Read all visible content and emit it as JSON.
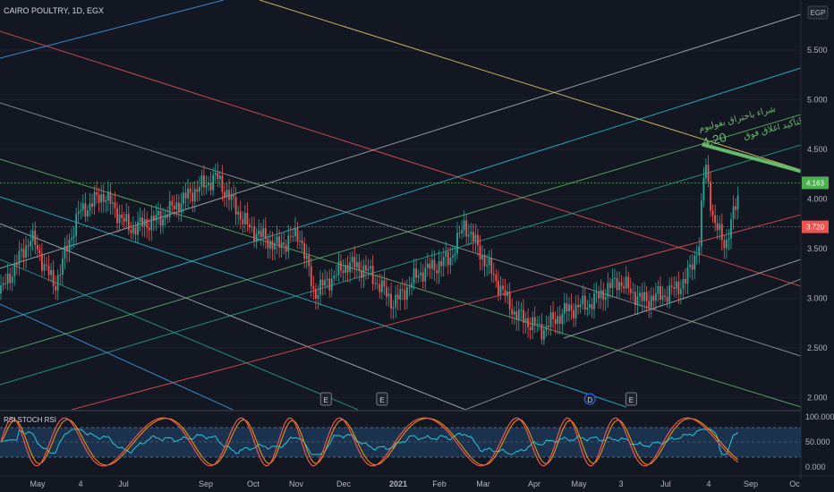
{
  "header": {
    "symbol_title": "CAIRO POULTRY, 1D, EGX",
    "currency_button": "EGP"
  },
  "price_badges": {
    "upper": {
      "value": "4.163",
      "color": "#4caf50"
    },
    "lower": {
      "value": "3.720",
      "color": "#ef5350"
    }
  },
  "annotation": {
    "line1": "شراء باختراق بفوليوم",
    "line2": "4.20",
    "line3": "للتأكيد اغلاق فوق",
    "color": "#66bb6a"
  },
  "events": [
    {
      "label": "E",
      "date": "2020-11-20",
      "kind": "earnings"
    },
    {
      "label": "E",
      "date": "2020-12-28",
      "kind": "earnings"
    },
    {
      "label": "D",
      "date": "2021-05-18",
      "kind": "dividend"
    },
    {
      "label": "E",
      "date": "2021-06-15",
      "kind": "earnings"
    }
  ],
  "indicator": {
    "title": "RSI STOCH RSI",
    "scale_labels": [
      "100.000",
      "50.000",
      "0.000"
    ],
    "levels": [
      80,
      50,
      20
    ]
  },
  "x_labels": [
    "May",
    "4",
    "Jul",
    "Sep",
    "Oct",
    "Nov",
    "Dec",
    "2021",
    "Feb",
    "Mar",
    "Apr",
    "May",
    "3",
    "Jul",
    "4",
    "Sep",
    "Oc"
  ],
  "y_labels": [
    "5.500",
    "5.000",
    "4.500",
    "4.000",
    "3.500",
    "3.000",
    "2.500",
    "2.000"
  ],
  "colors": {
    "background": "#131722",
    "up": "#26a69a",
    "down": "#ef5350",
    "stoch_k": "#ef5350",
    "stoch_d": "#ff9800",
    "rsi": "#26c6da"
  },
  "chart_data": {
    "type": "candlestick",
    "ylim": [
      1.95,
      5.85
    ],
    "xlim": [
      "2020-04-13",
      "2021-10-08"
    ],
    "close_series": [
      [
        "2020-04-13",
        3.05
      ],
      [
        "2020-05-04",
        3.62
      ],
      [
        "2020-05-20",
        3.12
      ],
      [
        "2020-06-05",
        3.85
      ],
      [
        "2020-06-22",
        4.05
      ],
      [
        "2020-07-10",
        3.7
      ],
      [
        "2020-08-01",
        3.82
      ],
      [
        "2020-08-22",
        4.08
      ],
      [
        "2020-09-07",
        4.22
      ],
      [
        "2020-09-28",
        3.72
      ],
      [
        "2020-10-18",
        3.52
      ],
      [
        "2020-11-02",
        3.65
      ],
      [
        "2020-11-12",
        3.05
      ],
      [
        "2020-12-05",
        3.35
      ],
      [
        "2020-12-18",
        3.28
      ],
      [
        "2021-01-05",
        2.95
      ],
      [
        "2021-01-22",
        3.25
      ],
      [
        "2021-02-12",
        3.4
      ],
      [
        "2021-02-22",
        3.75
      ],
      [
        "2021-03-10",
        3.32
      ],
      [
        "2021-03-28",
        2.85
      ],
      [
        "2021-04-15",
        2.68
      ],
      [
        "2021-05-02",
        2.88
      ],
      [
        "2021-05-18",
        2.95
      ],
      [
        "2021-06-06",
        3.18
      ],
      [
        "2021-06-22",
        2.98
      ],
      [
        "2021-07-10",
        3.05
      ],
      [
        "2021-07-22",
        3.18
      ],
      [
        "2021-07-31",
        3.55
      ],
      [
        "2021-08-04",
        4.4
      ],
      [
        "2021-08-10",
        3.75
      ],
      [
        "2021-08-18",
        3.55
      ],
      [
        "2021-08-27",
        4.05
      ],
      [
        "2021-09-01",
        3.72
      ]
    ],
    "resistance_line": {
      "from": [
        "2021-08-02",
        4.55
      ],
      "to": [
        "2021-10-08",
        4.28
      ]
    }
  }
}
